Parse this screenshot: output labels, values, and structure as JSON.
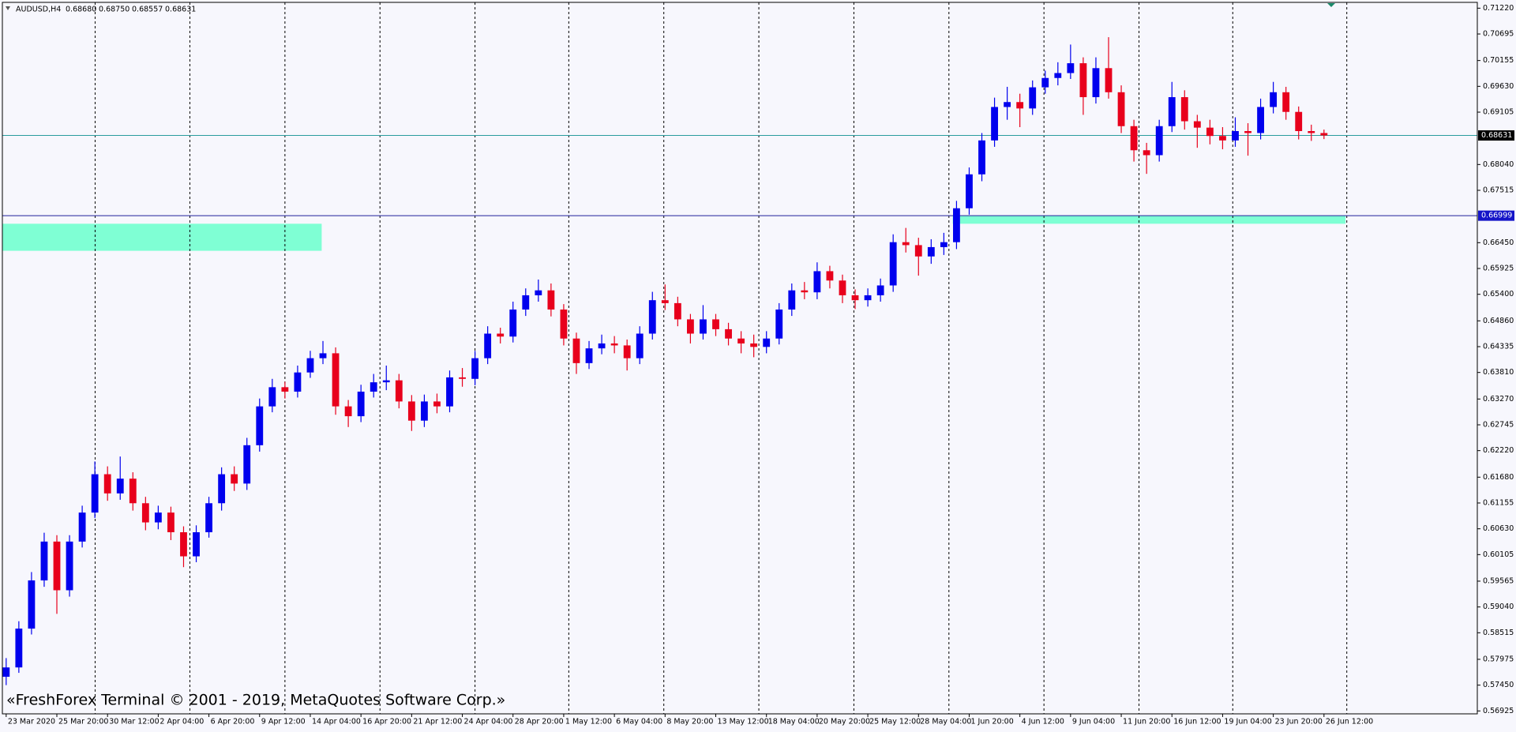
{
  "chart_data": {
    "type": "candlestick",
    "symbol": "AUDUSD,H4",
    "ohlc_labels": [
      "0.68680",
      "0.68750",
      "0.68557",
      "0.68631"
    ],
    "watermark": "«FreshForex Terminal © 2001 - 2019, MetaQuotes Software Corp.»",
    "up_color": "#0000ee",
    "down_color": "#e8001c",
    "open": [
      0.5762,
      0.5781,
      0.586,
      0.5958,
      0.6037,
      0.5938,
      0.6037,
      0.6096,
      0.6174,
      0.6135,
      0.6165,
      0.6115,
      0.6076,
      0.6096,
      0.6056,
      0.6007,
      0.6056,
      0.6115,
      0.6174,
      0.6155,
      0.6233,
      0.6312,
      0.6351,
      0.6342,
      0.6381,
      0.641,
      0.642,
      0.6312,
      0.6292,
      0.6342,
      0.6361,
      0.6365,
      0.6322,
      0.6283,
      0.6322,
      0.6312,
      0.6371,
      0.6368,
      0.641,
      0.646,
      0.6454,
      0.6509,
      0.6538,
      0.6548,
      0.6509,
      0.645,
      0.64,
      0.643,
      0.644,
      0.6436,
      0.641,
      0.646,
      0.6528,
      0.6522,
      0.6489,
      0.646,
      0.6489,
      0.6469,
      0.645,
      0.644,
      0.6433,
      0.645,
      0.6509,
      0.6548,
      0.6544,
      0.6587,
      0.6568,
      0.6538,
      0.6528,
      0.6538,
      0.6558,
      0.6646,
      0.664,
      0.6617,
      0.6636,
      0.6646,
      0.6715,
      0.6784,
      0.6853,
      0.6921,
      0.6931,
      0.6918,
      0.6961,
      0.698,
      0.699,
      0.701,
      0.6941,
      0.7,
      0.6951,
      0.6882,
      0.6833,
      0.6823,
      0.6882,
      0.6941,
      0.6892,
      0.6879,
      0.6862,
      0.6853,
      0.6872,
      0.6868,
      0.6921,
      0.6951,
      0.6911,
      0.6872,
      0.6868
    ],
    "high": [
      0.58,
      0.5875,
      0.5975,
      0.6055,
      0.605,
      0.605,
      0.611,
      0.62,
      0.619,
      0.621,
      0.6178,
      0.6128,
      0.611,
      0.6108,
      0.6068,
      0.607,
      0.6128,
      0.6188,
      0.619,
      0.6248,
      0.6328,
      0.6368,
      0.6362,
      0.6395,
      0.6425,
      0.6445,
      0.6432,
      0.6325,
      0.6356,
      0.6378,
      0.6395,
      0.6378,
      0.6335,
      0.6336,
      0.6338,
      0.6385,
      0.639,
      0.6425,
      0.6475,
      0.6472,
      0.6525,
      0.6552,
      0.657,
      0.6562,
      0.652,
      0.6462,
      0.6445,
      0.6458,
      0.6455,
      0.6448,
      0.6475,
      0.6545,
      0.656,
      0.6535,
      0.65,
      0.6518,
      0.65,
      0.6482,
      0.6465,
      0.6458,
      0.6465,
      0.6522,
      0.6562,
      0.6565,
      0.6605,
      0.6598,
      0.658,
      0.655,
      0.6552,
      0.6572,
      0.6662,
      0.6675,
      0.6655,
      0.6652,
      0.6665,
      0.673,
      0.6798,
      0.6868,
      0.694,
      0.6962,
      0.6948,
      0.6975,
      0.6995,
      0.7012,
      0.7048,
      0.7022,
      0.7022,
      0.7063,
      0.6965,
      0.6895,
      0.6848,
      0.6895,
      0.6972,
      0.6955,
      0.6905,
      0.6895,
      0.688,
      0.69,
      0.6888,
      0.6938,
      0.6972,
      0.6962,
      0.6922,
      0.6885,
      0.6875
    ],
    "low": [
      0.5745,
      0.577,
      0.5848,
      0.5945,
      0.589,
      0.5925,
      0.6025,
      0.6085,
      0.612,
      0.6122,
      0.61,
      0.606,
      0.6062,
      0.604,
      0.5985,
      0.5995,
      0.6045,
      0.61,
      0.614,
      0.6142,
      0.622,
      0.63,
      0.6328,
      0.633,
      0.637,
      0.6398,
      0.6295,
      0.627,
      0.628,
      0.633,
      0.6345,
      0.6308,
      0.6262,
      0.627,
      0.6298,
      0.63,
      0.6352,
      0.6355,
      0.6398,
      0.644,
      0.6442,
      0.6496,
      0.6525,
      0.6495,
      0.6436,
      0.6378,
      0.6388,
      0.6418,
      0.642,
      0.6385,
      0.6398,
      0.6448,
      0.6508,
      0.6475,
      0.644,
      0.6448,
      0.6455,
      0.6436,
      0.642,
      0.6412,
      0.642,
      0.6438,
      0.6496,
      0.653,
      0.653,
      0.6552,
      0.6522,
      0.651,
      0.6515,
      0.6525,
      0.6545,
      0.6625,
      0.6578,
      0.6602,
      0.662,
      0.6632,
      0.6702,
      0.677,
      0.684,
      0.6895,
      0.688,
      0.6905,
      0.6948,
      0.6965,
      0.6978,
      0.6905,
      0.6928,
      0.6938,
      0.6868,
      0.681,
      0.6785,
      0.681,
      0.687,
      0.6875,
      0.6838,
      0.6845,
      0.6835,
      0.684,
      0.6822,
      0.6855,
      0.6908,
      0.6895,
      0.6855,
      0.6852,
      0.68557
    ],
    "close": [
      0.5781,
      0.586,
      0.5958,
      0.6037,
      0.5938,
      0.6037,
      0.6096,
      0.6174,
      0.6135,
      0.6165,
      0.6115,
      0.6076,
      0.6096,
      0.6056,
      0.6007,
      0.6056,
      0.6115,
      0.6174,
      0.6155,
      0.6233,
      0.6312,
      0.6351,
      0.6342,
      0.6381,
      0.641,
      0.642,
      0.6312,
      0.6292,
      0.6342,
      0.6361,
      0.6365,
      0.6322,
      0.6283,
      0.6322,
      0.6312,
      0.6371,
      0.6368,
      0.641,
      0.646,
      0.6454,
      0.6509,
      0.6538,
      0.6548,
      0.6509,
      0.645,
      0.64,
      0.643,
      0.644,
      0.6436,
      0.641,
      0.646,
      0.6528,
      0.6522,
      0.6489,
      0.646,
      0.6489,
      0.6469,
      0.645,
      0.644,
      0.6433,
      0.645,
      0.6509,
      0.6548,
      0.6544,
      0.6587,
      0.6568,
      0.6538,
      0.6528,
      0.6538,
      0.6558,
      0.6646,
      0.664,
      0.6617,
      0.6636,
      0.6646,
      0.6715,
      0.6784,
      0.6853,
      0.6921,
      0.6931,
      0.6918,
      0.6961,
      0.698,
      0.699,
      0.701,
      0.6941,
      0.7,
      0.6951,
      0.6882,
      0.6833,
      0.6823,
      0.6882,
      0.6941,
      0.6892,
      0.6879,
      0.6862,
      0.6853,
      0.6872,
      0.6868,
      0.6921,
      0.6951,
      0.6911,
      0.6872,
      0.6868,
      0.68631
    ],
    "xlim": [
      -0.3,
      116.1
    ],
    "xticks": [
      {
        "value": 0,
        "label": "23 Mar 2020"
      },
      {
        "value": 4,
        "label": "25 Mar 20:00"
      },
      {
        "value": 8,
        "label": "30 Mar 12:00"
      },
      {
        "value": 12,
        "label": "2 Apr 04:00"
      },
      {
        "value": 16,
        "label": "6 Apr 20:00"
      },
      {
        "value": 20,
        "label": "9 Apr 12:00"
      },
      {
        "value": 24,
        "label": "14 Apr 04:00"
      },
      {
        "value": 28,
        "label": "16 Apr 20:00"
      },
      {
        "value": 32,
        "label": "21 Apr 12:00"
      },
      {
        "value": 36,
        "label": "24 Apr 04:00"
      },
      {
        "value": 40,
        "label": "28 Apr 20:00"
      },
      {
        "value": 44,
        "label": "1 May 12:00"
      },
      {
        "value": 48,
        "label": "6 May 04:00"
      },
      {
        "value": 52,
        "label": "8 May 20:00"
      },
      {
        "value": 56,
        "label": "13 May 12:00"
      },
      {
        "value": 60,
        "label": "18 May 04:00"
      },
      {
        "value": 64,
        "label": "20 May 20:00"
      },
      {
        "value": 68,
        "label": "25 May 12:00"
      },
      {
        "value": 72,
        "label": "28 May 04:00"
      },
      {
        "value": 76,
        "label": "1 Jun 20:00"
      },
      {
        "value": 80,
        "label": "4 Jun 12:00"
      },
      {
        "value": 84,
        "label": "9 Jun 04:00"
      },
      {
        "value": 88,
        "label": "11 Jun 20:00"
      },
      {
        "value": 92,
        "label": "16 Jun 12:00"
      },
      {
        "value": 96,
        "label": "19 Jun 04:00"
      },
      {
        "value": 100,
        "label": "23 Jun 20:00"
      },
      {
        "value": 104,
        "label": "26 Jun 12:00"
      }
    ],
    "xgrid": [
      7.02,
      14.5,
      22.0,
      29.5,
      37.0,
      44.4,
      51.9,
      59.4,
      66.9,
      74.4,
      81.9,
      89.4,
      96.8,
      105.8
    ],
    "ylim": [
      0.56866,
      0.71338
    ],
    "yticks": [
      {
        "value": 0.7122,
        "label": "0.71220"
      },
      0.70695,
      0.70155,
      {
        "value": 0.6963,
        "label": "0.69630"
      },
      0.69105,
      {
        "value": 0.6804,
        "label": "0.68040"
      },
      0.67515,
      {
        "value": 0.6645,
        "label": "0.66450"
      },
      0.65925,
      {
        "value": 0.654,
        "label": "0.65400"
      },
      {
        "value": 0.6486,
        "label": "0.64860"
      },
      0.64335,
      {
        "value": 0.6381,
        "label": "0.63810"
      },
      {
        "value": 0.6327,
        "label": "0.63270"
      },
      0.62745,
      {
        "value": 0.6222,
        "label": "0.62220"
      },
      {
        "value": 0.6168,
        "label": "0.61680"
      },
      0.61155,
      {
        "value": 0.6063,
        "label": "0.60630"
      },
      0.60105,
      0.59565,
      {
        "value": 0.5904,
        "label": "0.59040"
      },
      0.58515,
      0.57975,
      {
        "value": 0.5745,
        "label": "0.57450"
      },
      0.56925
    ],
    "price_lines": [
      {
        "value": 0.68631,
        "color": "#2a9d9d",
        "label_color": "#000000"
      },
      {
        "value": 0.66999,
        "color": "#20209a",
        "label_color": "#1414c8"
      }
    ],
    "zones": [
      {
        "x": [
          -0.3,
          24.9
        ],
        "y": [
          0.66285,
          0.66835
        ],
        "color": "#7fffd4"
      },
      {
        "x": [
          74.7,
          105.7
        ],
        "y": [
          0.66835,
          0.66999
        ],
        "color": "#7fffd4"
      }
    ]
  }
}
